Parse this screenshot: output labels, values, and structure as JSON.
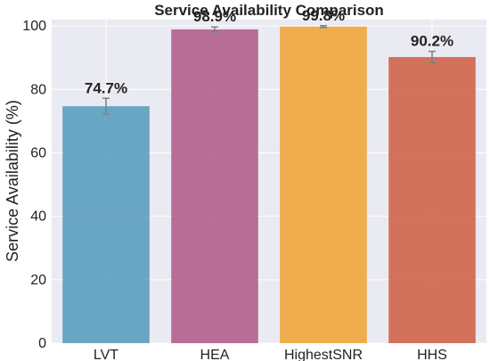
{
  "chart_data": {
    "type": "bar",
    "title": "Service Availability Comparison",
    "xlabel": "",
    "ylabel": "Service Availability (%)",
    "categories": [
      "LVT",
      "HEA",
      "HighestSNR",
      "HHS"
    ],
    "values": [
      74.7,
      98.9,
      99.8,
      90.2
    ],
    "value_labels": [
      "74.7%",
      "98.9%",
      "99.8%",
      "90.2%"
    ],
    "errors": [
      2.5,
      0.8,
      0.3,
      1.8
    ],
    "ylim": [
      0,
      102
    ],
    "yticks": [
      0,
      20,
      40,
      60,
      80,
      100
    ],
    "grid": true,
    "colors": [
      "#5b9ebf",
      "#b15f8c",
      "#f0a63c",
      "#d0654b"
    ],
    "background": "#eaeaf2",
    "errorbar_color": "#808080"
  }
}
